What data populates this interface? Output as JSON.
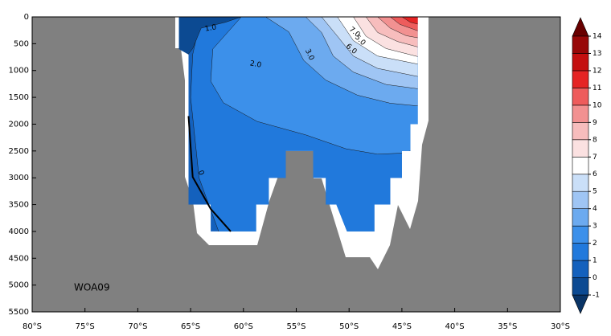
{
  "chart_data": {
    "type": "contour",
    "xlim": [
      -80,
      -30
    ],
    "xticks": [
      {
        "value": -80,
        "label": "80°S"
      },
      {
        "value": -75,
        "label": "75°S"
      },
      {
        "value": -70,
        "label": "70°S"
      },
      {
        "value": -65,
        "label": "65°S"
      },
      {
        "value": -60,
        "label": "60°S"
      },
      {
        "value": -55,
        "label": "55°S"
      },
      {
        "value": -50,
        "label": "50°S"
      },
      {
        "value": -45,
        "label": "45°S"
      },
      {
        "value": -40,
        "label": "40°S"
      },
      {
        "value": -35,
        "label": "35°S"
      },
      {
        "value": -30,
        "label": "30°S"
      }
    ],
    "ylim": [
      0,
      5500
    ],
    "y_inverted": true,
    "yticks": [
      0,
      500,
      1000,
      1500,
      2000,
      2500,
      3000,
      3500,
      4000,
      4500,
      5000,
      5500
    ],
    "annotation": "WOA09",
    "contour_labels": [
      "1.0",
      "2.0",
      "3.0",
      "5.0",
      "6.0",
      "7.0",
      "0"
    ],
    "colorbar": {
      "levels": [
        -1,
        0,
        1,
        2,
        3,
        4,
        5,
        6,
        7,
        8,
        9,
        10,
        11,
        12,
        13,
        14
      ],
      "colors": [
        "#0a3466",
        "#0c4a92",
        "#1461bd",
        "#2179dc",
        "#3c90ea",
        "#6caaef",
        "#9fc5f4",
        "#cadff8",
        "#ffffff",
        "#fbe1e1",
        "#f7bdbd",
        "#f29191",
        "#ee5c5c",
        "#e52424",
        "#c41010",
        "#980808",
        "#680000"
      ]
    },
    "regions": [
      {
        "level": 0,
        "points": [
          [
            -66.1,
            0
          ],
          [
            -43.5,
            0
          ],
          [
            -43.5,
            2000
          ],
          [
            -44.2,
            2000
          ],
          [
            -44.2,
            2500
          ],
          [
            -45,
            2500
          ],
          [
            -45,
            3000
          ],
          [
            -46.1,
            3000
          ],
          [
            -46.1,
            3500
          ],
          [
            -47.6,
            3500
          ],
          [
            -47.6,
            4000
          ],
          [
            -50.2,
            4000
          ],
          [
            -51.2,
            3500
          ],
          [
            -52.2,
            3500
          ],
          [
            -52.2,
            3000
          ],
          [
            -53.4,
            3000
          ],
          [
            -53.4,
            2500
          ],
          [
            -56,
            2500
          ],
          [
            -56,
            3000
          ],
          [
            -57.6,
            3000
          ],
          [
            -57.6,
            3500
          ],
          [
            -58.8,
            3500
          ],
          [
            -58.8,
            4000
          ],
          [
            -63.1,
            4000
          ],
          [
            -63.1,
            3500
          ],
          [
            -65.2,
            3500
          ],
          [
            -65.2,
            700
          ],
          [
            -66.1,
            600
          ]
        ]
      },
      {
        "level": 1,
        "points": [
          [
            -64,
            0
          ],
          [
            -64.8,
            700
          ],
          [
            -65,
            1500
          ],
          [
            -64.2,
            3000
          ],
          [
            -63.1,
            3600
          ],
          [
            -61.4,
            4500
          ],
          [
            -30,
            4500
          ],
          [
            -30,
            0
          ]
        ]
      },
      {
        "level": 2,
        "points": [
          [
            -60.2,
            0
          ],
          [
            -62.9,
            600
          ],
          [
            -63.1,
            1200
          ],
          [
            -61.9,
            1600
          ],
          [
            -58.7,
            1950
          ],
          [
            -54.1,
            2200
          ],
          [
            -50.3,
            2460
          ],
          [
            -47.3,
            2560
          ],
          [
            -45,
            2540
          ],
          [
            -43.5,
            2460
          ],
          [
            -30,
            2460
          ],
          [
            -30,
            0
          ]
        ]
      },
      {
        "level": 3,
        "points": [
          [
            -57.9,
            0
          ],
          [
            -55.7,
            280
          ],
          [
            -54.3,
            810
          ],
          [
            -52.2,
            1180
          ],
          [
            -49.2,
            1460
          ],
          [
            -46.1,
            1610
          ],
          [
            -43.5,
            1660
          ],
          [
            -30,
            1660
          ],
          [
            -30,
            0
          ]
        ]
      },
      {
        "level": 4,
        "points": [
          [
            -54.1,
            0
          ],
          [
            -52.6,
            290
          ],
          [
            -51.5,
            730
          ],
          [
            -49.6,
            1030
          ],
          [
            -46.5,
            1260
          ],
          [
            -43.5,
            1340
          ],
          [
            -30,
            1340
          ],
          [
            -30,
            0
          ]
        ]
      },
      {
        "level": 5,
        "points": [
          [
            -52.6,
            0
          ],
          [
            -51.1,
            360
          ],
          [
            -49.6,
            730
          ],
          [
            -47.3,
            960
          ],
          [
            -43.5,
            1110
          ],
          [
            -30,
            1110
          ],
          [
            -30,
            0
          ]
        ]
      },
      {
        "level": 6,
        "points": [
          [
            -51.1,
            0
          ],
          [
            -49.6,
            440
          ],
          [
            -47.3,
            730
          ],
          [
            -43.5,
            880
          ],
          [
            -30,
            880
          ],
          [
            -30,
            0
          ]
        ]
      },
      {
        "level": 7,
        "points": [
          [
            -49.6,
            0
          ],
          [
            -48.4,
            360
          ],
          [
            -46.5,
            590
          ],
          [
            -43.5,
            740
          ],
          [
            -30,
            740
          ],
          [
            -30,
            0
          ]
        ]
      },
      {
        "level": 8,
        "points": [
          [
            -48.4,
            0
          ],
          [
            -47.3,
            290
          ],
          [
            -45.4,
            460
          ],
          [
            -43.5,
            560
          ],
          [
            -30,
            560
          ],
          [
            -30,
            0
          ]
        ]
      },
      {
        "level": 9,
        "points": [
          [
            -47.3,
            0
          ],
          [
            -46.1,
            210
          ],
          [
            -44.6,
            350
          ],
          [
            -43.5,
            390
          ],
          [
            -30,
            390
          ],
          [
            -30,
            0
          ]
        ]
      },
      {
        "level": 10,
        "points": [
          [
            -46.1,
            0
          ],
          [
            -45.2,
            140
          ],
          [
            -43.5,
            260
          ],
          [
            -30,
            260
          ],
          [
            -30,
            0
          ]
        ]
      },
      {
        "level": 11,
        "points": [
          [
            -45,
            0
          ],
          [
            -44.2,
            100
          ],
          [
            -43.5,
            135
          ],
          [
            -30,
            135
          ],
          [
            -30,
            0
          ]
        ]
      },
      {
        "level": -1,
        "points": [
          [
            -66.2,
            0
          ],
          [
            -60.2,
            0
          ],
          [
            -61.7,
            100
          ],
          [
            -64,
            210
          ],
          [
            -64.8,
            590
          ],
          [
            -65.4,
            740
          ],
          [
            -66.2,
            740
          ]
        ]
      }
    ],
    "lines": [
      {
        "level": 0,
        "points": [
          [
            -65.2,
            1850
          ],
          [
            -64.8,
            2985
          ],
          [
            -63.1,
            3580
          ],
          [
            -61.2,
            4000
          ]
        ]
      }
    ]
  }
}
